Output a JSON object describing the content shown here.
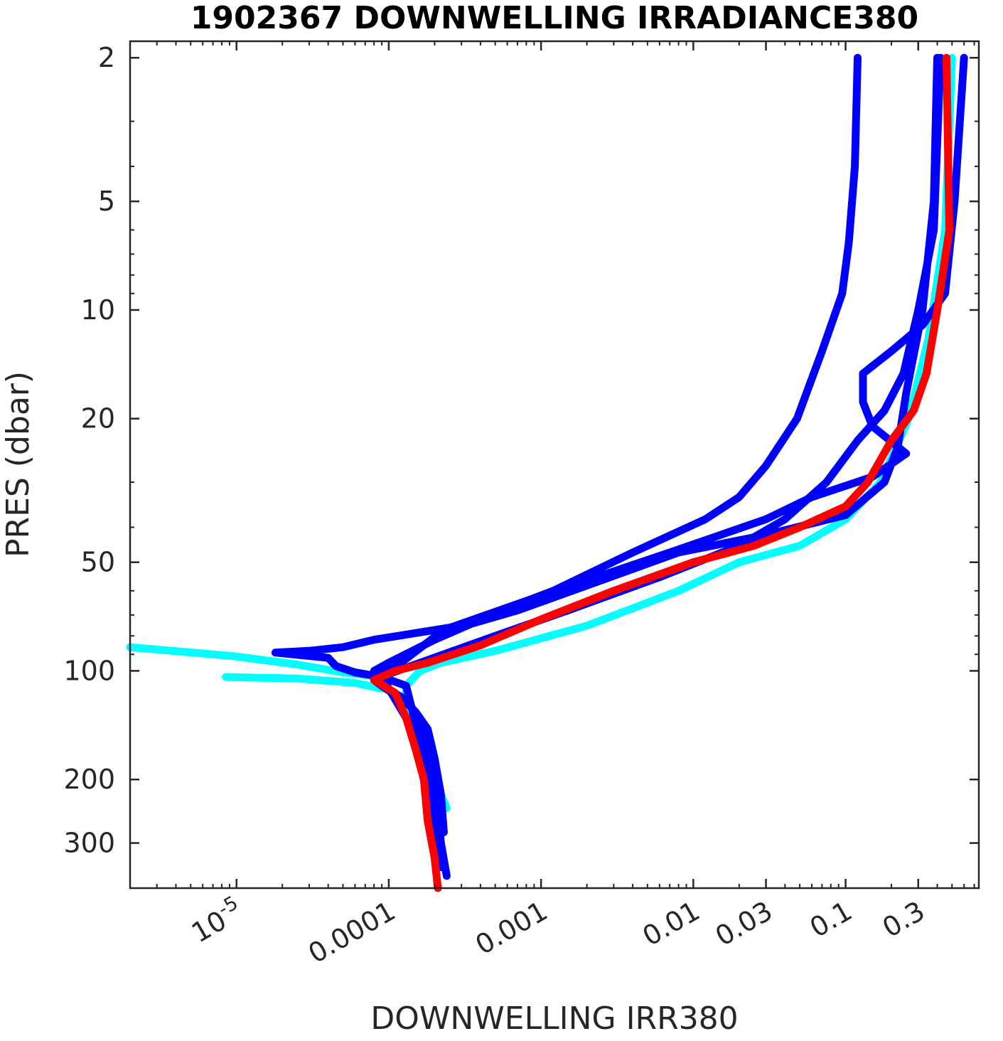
{
  "chart_data": {
    "type": "line",
    "title": "1902367  DOWNWELLING IRRADIANCE380",
    "xlabel": "DOWNWELLING IRR380",
    "ylabel": "PRES (dbar)",
    "xscale": "log",
    "yscale": "log",
    "yreversed": true,
    "xlim": [
      2e-06,
      0.75
    ],
    "ylim": [
      1.8,
      400
    ],
    "xticks": [
      {
        "value": 1e-05,
        "base": "10",
        "exp": "-5"
      },
      {
        "value": 0.0001,
        "label": "0.0001"
      },
      {
        "value": 0.001,
        "label": "0.001"
      },
      {
        "value": 0.01,
        "label": "0.01"
      },
      {
        "value": 0.03,
        "label": "0.03"
      },
      {
        "value": 0.1,
        "label": "0.1"
      },
      {
        "value": 0.3,
        "label": "0.3"
      }
    ],
    "yticks": [
      {
        "value": 2,
        "label": "2"
      },
      {
        "value": 5,
        "label": "5"
      },
      {
        "value": 10,
        "label": "10"
      },
      {
        "value": 20,
        "label": "20"
      },
      {
        "value": 50,
        "label": "50"
      },
      {
        "value": 100,
        "label": "100"
      },
      {
        "value": 200,
        "label": "200"
      },
      {
        "value": 300,
        "label": "300"
      }
    ],
    "grid": false,
    "series": [
      {
        "color": "#00ffff",
        "points": [
          [
            0.5,
            2
          ],
          [
            0.45,
            6
          ],
          [
            0.35,
            12
          ],
          [
            0.26,
            20
          ],
          [
            0.17,
            30
          ],
          [
            0.1,
            38
          ],
          [
            0.05,
            45
          ],
          [
            0.02,
            50
          ],
          [
            0.008,
            60
          ],
          [
            0.002,
            75
          ],
          [
            0.0005,
            88
          ],
          [
            0.00022,
            95
          ],
          [
            0.00016,
            100
          ],
          [
            0.00013,
            110
          ],
          [
            0.00013,
            130
          ],
          [
            0.00016,
            160
          ],
          [
            0.0002,
            200
          ],
          [
            0.00024,
            240
          ]
        ]
      },
      {
        "color": "#00ffff",
        "points": [
          [
            2e-06,
            86
          ],
          [
            9.5e-06,
            91
          ],
          [
            2.5e-05,
            96
          ],
          [
            5e-05,
            101
          ],
          [
            9e-05,
            104
          ]
        ]
      },
      {
        "color": "#00ffff",
        "points": [
          [
            8.5e-06,
            104
          ],
          [
            2.5e-05,
            105
          ],
          [
            6e-05,
            108
          ],
          [
            9e-05,
            112
          ]
        ]
      },
      {
        "color": "#0000ff",
        "points": [
          [
            0.12,
            2
          ],
          [
            0.115,
            4
          ],
          [
            0.105,
            6.5
          ],
          [
            0.095,
            9
          ],
          [
            0.07,
            13
          ],
          [
            0.048,
            20
          ],
          [
            0.03,
            27
          ],
          [
            0.02,
            33
          ],
          [
            0.012,
            38
          ],
          [
            0.004,
            47
          ],
          [
            0.0012,
            60
          ],
          [
            0.0003,
            75
          ],
          [
            8e-05,
            82
          ],
          [
            5e-05,
            86
          ],
          [
            3e-05,
            88
          ],
          [
            1.8e-05,
            89
          ],
          [
            4e-05,
            92
          ],
          [
            4.5e-05,
            97
          ],
          [
            6e-05,
            101
          ],
          [
            9e-05,
            104
          ],
          [
            0.00013,
            110
          ],
          [
            0.00015,
            140
          ],
          [
            0.00017,
            170
          ],
          [
            0.00019,
            210
          ],
          [
            0.0002,
            260
          ],
          [
            0.00022,
            350
          ]
        ]
      },
      {
        "color": "#0000ff",
        "points": [
          [
            0.42,
            2
          ],
          [
            0.38,
            6
          ],
          [
            0.3,
            10
          ],
          [
            0.24,
            15
          ],
          [
            0.18,
            19
          ],
          [
            0.12,
            23
          ],
          [
            0.075,
            30
          ],
          [
            0.04,
            38
          ],
          [
            0.02,
            45
          ],
          [
            0.006,
            55
          ],
          [
            0.0015,
            68
          ],
          [
            0.0005,
            80
          ],
          [
            0.00014,
            97
          ],
          [
            0.0001,
            102
          ],
          [
            8e-05,
            106
          ],
          [
            9e-05,
            110
          ],
          [
            0.00012,
            118
          ],
          [
            0.00015,
            130
          ],
          [
            0.00018,
            145
          ],
          [
            0.0002,
            175
          ],
          [
            0.00022,
            220
          ],
          [
            0.00023,
            280
          ]
        ]
      },
      {
        "color": "#0000ff",
        "points": [
          [
            0.4,
            2
          ],
          [
            0.38,
            5
          ],
          [
            0.32,
            10
          ],
          [
            0.25,
            17
          ],
          [
            0.22,
            24
          ],
          [
            0.18,
            30
          ],
          [
            0.1,
            37
          ],
          [
            0.03,
            42
          ],
          [
            0.008,
            47
          ],
          [
            0.002,
            58
          ],
          [
            0.0007,
            68
          ],
          [
            0.00035,
            74
          ],
          [
            0.0002,
            82
          ],
          [
            0.0001,
            95
          ],
          [
            8e-05,
            100
          ],
          [
            9e-05,
            110
          ],
          [
            0.00014,
            125
          ],
          [
            0.00018,
            160
          ],
          [
            0.0002,
            200
          ],
          [
            0.00022,
            300
          ],
          [
            0.00024,
            370
          ]
        ]
      },
      {
        "color": "#0000ff",
        "points": [
          [
            0.6,
            2
          ],
          [
            0.52,
            5
          ],
          [
            0.45,
            9
          ],
          [
            0.32,
            11
          ],
          [
            0.2,
            13
          ],
          [
            0.13,
            15
          ],
          [
            0.13,
            18
          ],
          [
            0.15,
            21
          ],
          [
            0.25,
            25
          ],
          [
            0.15,
            29
          ],
          [
            0.06,
            33
          ],
          [
            0.03,
            38
          ],
          [
            0.007,
            47
          ],
          [
            0.0008,
            64
          ],
          [
            0.00023,
            77
          ],
          [
            0.00012,
            95
          ],
          [
            9e-05,
            103
          ],
          [
            0.0001,
            112
          ],
          [
            0.00013,
            135
          ],
          [
            0.00016,
            175
          ],
          [
            0.00018,
            230
          ]
        ]
      },
      {
        "color": "#ff0000",
        "points": [
          [
            0.46,
            2
          ],
          [
            0.48,
            6
          ],
          [
            0.4,
            10
          ],
          [
            0.34,
            15
          ],
          [
            0.28,
            19
          ],
          [
            0.2,
            23
          ],
          [
            0.14,
            30
          ],
          [
            0.1,
            35
          ],
          [
            0.05,
            40
          ],
          [
            0.025,
            45
          ],
          [
            0.01,
            50
          ],
          [
            0.003,
            60
          ],
          [
            0.001,
            72
          ],
          [
            0.0004,
            85
          ],
          [
            0.00018,
            95
          ],
          [
            0.00011,
            100
          ],
          [
            8e-05,
            106
          ],
          [
            0.00011,
            115
          ],
          [
            0.00013,
            135
          ],
          [
            0.00015,
            165
          ],
          [
            0.00017,
            200
          ],
          [
            0.00018,
            260
          ],
          [
            0.0002,
            330
          ],
          [
            0.00021,
            400
          ]
        ]
      }
    ]
  }
}
